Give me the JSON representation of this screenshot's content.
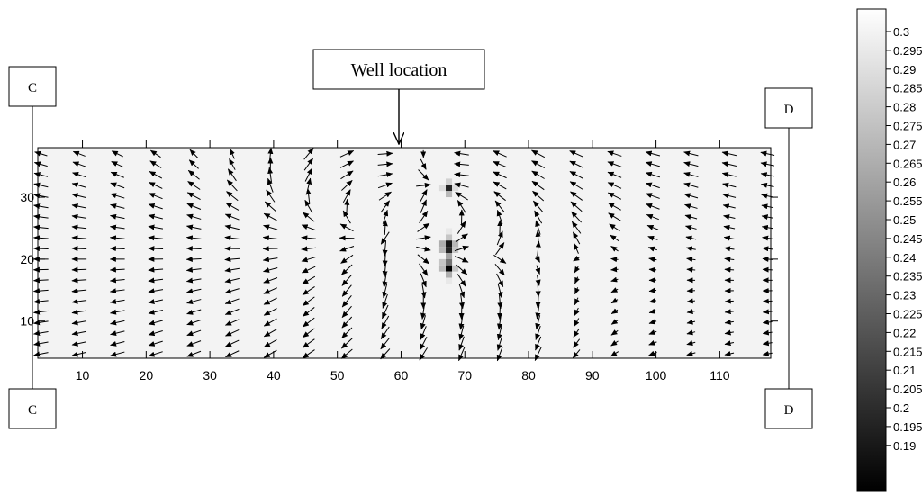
{
  "chart_data": {
    "type": "heatmap",
    "title": "",
    "xlabel": "",
    "ylabel": "",
    "xlim": [
      3,
      118
    ],
    "ylim": [
      4,
      38
    ],
    "x_ticks": [
      10,
      20,
      30,
      40,
      50,
      60,
      70,
      80,
      90,
      100,
      110
    ],
    "y_ticks": [
      10,
      20,
      30
    ],
    "background_value": 0.298,
    "low_value_cells": [
      {
        "x": 67.5,
        "y": 31.5,
        "value": 0.205
      },
      {
        "x": 67.5,
        "y": 30.5,
        "value": 0.27
      },
      {
        "x": 67.5,
        "y": 32.5,
        "value": 0.28
      },
      {
        "x": 66.5,
        "y": 31.5,
        "value": 0.285
      },
      {
        "x": 68.5,
        "y": 31.5,
        "value": 0.285
      },
      {
        "x": 67.5,
        "y": 23.5,
        "value": 0.275
      },
      {
        "x": 67.5,
        "y": 22.5,
        "value": 0.2
      },
      {
        "x": 67.5,
        "y": 21.5,
        "value": 0.205
      },
      {
        "x": 67.5,
        "y": 20.5,
        "value": 0.26
      },
      {
        "x": 67.5,
        "y": 19.5,
        "value": 0.24
      },
      {
        "x": 67.5,
        "y": 18.5,
        "value": 0.19
      },
      {
        "x": 67.5,
        "y": 17.5,
        "value": 0.265
      },
      {
        "x": 66.5,
        "y": 22.5,
        "value": 0.265
      },
      {
        "x": 66.5,
        "y": 21.5,
        "value": 0.27
      },
      {
        "x": 66.5,
        "y": 19.5,
        "value": 0.275
      },
      {
        "x": 66.5,
        "y": 18.5,
        "value": 0.27
      },
      {
        "x": 68.5,
        "y": 22.5,
        "value": 0.27
      },
      {
        "x": 68.5,
        "y": 21.5,
        "value": 0.275
      },
      {
        "x": 68.5,
        "y": 18.5,
        "value": 0.275
      },
      {
        "x": 67.5,
        "y": 16.5,
        "value": 0.29
      },
      {
        "x": 67.5,
        "y": 24.5,
        "value": 0.29
      }
    ],
    "vectors": {
      "columns": [
        3.5,
        9.5,
        15.5,
        21.5,
        27.5,
        33.5,
        39.5,
        45.5,
        51.5,
        57.5,
        63.5,
        69.5,
        75.5,
        81.5,
        87.5,
        93.5,
        99.5,
        105.5,
        111.5,
        117.5
      ],
      "rows": [
        37,
        35.3,
        33.6,
        31.9,
        30.2,
        28.5,
        26.8,
        25.1,
        23.4,
        21.7,
        20,
        18.3,
        16.6,
        14.9,
        13.2,
        11.5,
        9.8,
        8.1,
        6.4,
        4.7
      ],
      "well_x": 60,
      "well_y": 31,
      "source_x": 58,
      "source_y": 24
    },
    "annotation": "Well location",
    "section_labels": {
      "left_top": "C",
      "left_bottom": "C",
      "right_top": "D",
      "right_bottom": "D"
    },
    "colorbar": {
      "min": 0.19,
      "max": 0.3,
      "ticks": [
        "0.3",
        "0.295",
        "0.29",
        "0.285",
        "0.28",
        "0.275",
        "0.27",
        "0.265",
        "0.26",
        "0.255",
        "0.25",
        "0.245",
        "0.24",
        "0.235",
        "0.23",
        "0.225",
        "0.22",
        "0.215",
        "0.21",
        "0.205",
        "0.2",
        "0.195",
        "0.19"
      ]
    },
    "grid": false
  }
}
